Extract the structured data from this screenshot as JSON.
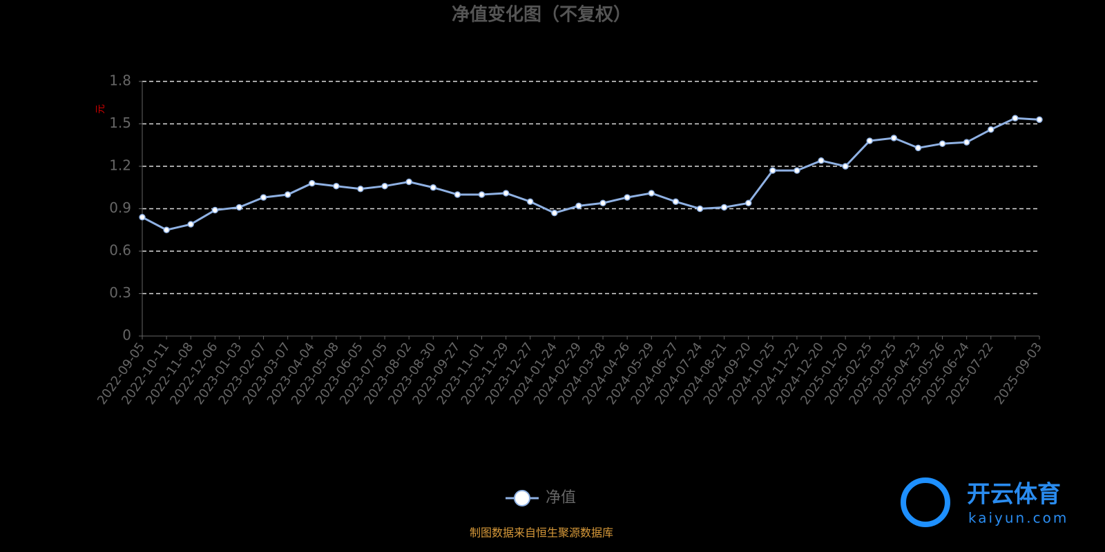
{
  "chart_data": {
    "type": "line",
    "title": "净值变化图（不复权）",
    "y_label": "元",
    "categories": [
      "2022-09-05",
      "2022-10-11",
      "2022-11-08",
      "2022-12-06",
      "2023-01-03",
      "2023-02-07",
      "2023-03-07",
      "2023-04-04",
      "2023-05-08",
      "2023-06-05",
      "2023-07-05",
      "2023-08-02",
      "2023-08-30",
      "2023-09-27",
      "2023-11-01",
      "2023-11-29",
      "2023-12-27",
      "2024-01-24",
      "2024-02-29",
      "2024-03-28",
      "2024-04-26",
      "2024-05-29",
      "2024-06-27",
      "2024-07-24",
      "2024-08-21",
      "2024-09-20",
      "2024-10-25",
      "2024-11-22",
      "2024-12-20",
      "2025-01-20",
      "2025-02-25",
      "2025-03-25",
      "2025-04-23",
      "2025-05-26",
      "2025-06-24",
      "2025-07-22",
      null,
      "2025-09-03"
    ],
    "series": [
      {
        "name": "净值",
        "color": "#8fb1e3",
        "values": [
          0.84,
          0.75,
          0.79,
          0.89,
          0.91,
          0.98,
          1.0,
          1.08,
          1.06,
          1.04,
          1.06,
          1.09,
          1.05,
          1.0,
          1.0,
          1.01,
          0.95,
          0.87,
          0.92,
          0.94,
          0.98,
          1.01,
          0.95,
          0.9,
          0.91,
          0.94,
          1.17,
          1.17,
          1.24,
          1.2,
          1.38,
          1.4,
          1.33,
          1.36,
          1.37,
          1.46,
          1.54,
          1.53
        ]
      }
    ],
    "ylim": [
      0,
      1.8
    ],
    "yticks": [
      0,
      0.3,
      0.6,
      0.9,
      1.2,
      1.5,
      1.8
    ],
    "grid": true,
    "source": "制图数据来自恒生聚源数据库",
    "watermark": {
      "brand": "开云体育",
      "site": "kaiyun.com"
    }
  }
}
